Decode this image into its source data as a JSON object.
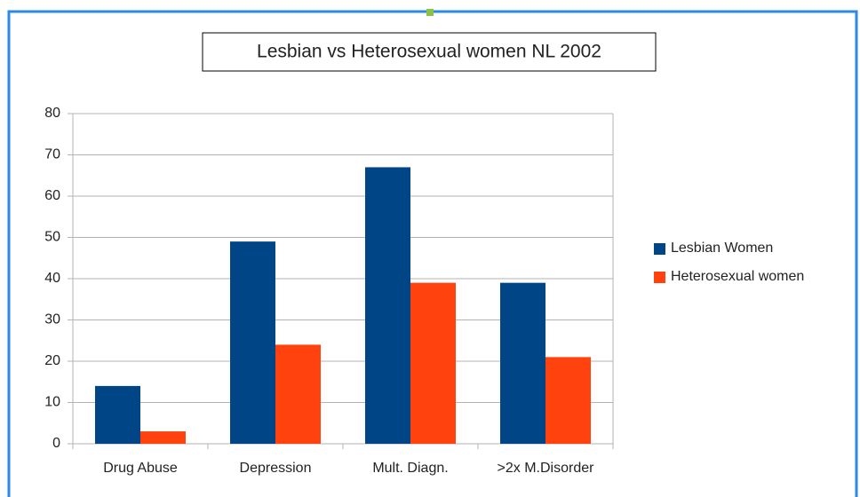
{
  "chart_data": {
    "type": "bar",
    "title": "Lesbian vs Heterosexual women NL 2002",
    "categories": [
      "Drug Abuse",
      "Depression",
      "Mult. Diagn.",
      ">2x M.Disorder"
    ],
    "series": [
      {
        "name": "Lesbian Women",
        "color": "#004586",
        "values": [
          14,
          49,
          67,
          39
        ]
      },
      {
        "name": "Heterosexual women",
        "color": "#ff420e",
        "values": [
          3,
          24,
          39,
          21
        ]
      }
    ],
    "ylim": [
      0,
      80
    ],
    "yticks": [
      0,
      10,
      20,
      30,
      40,
      50,
      60,
      70,
      80
    ],
    "grid": true,
    "legend": "right"
  }
}
